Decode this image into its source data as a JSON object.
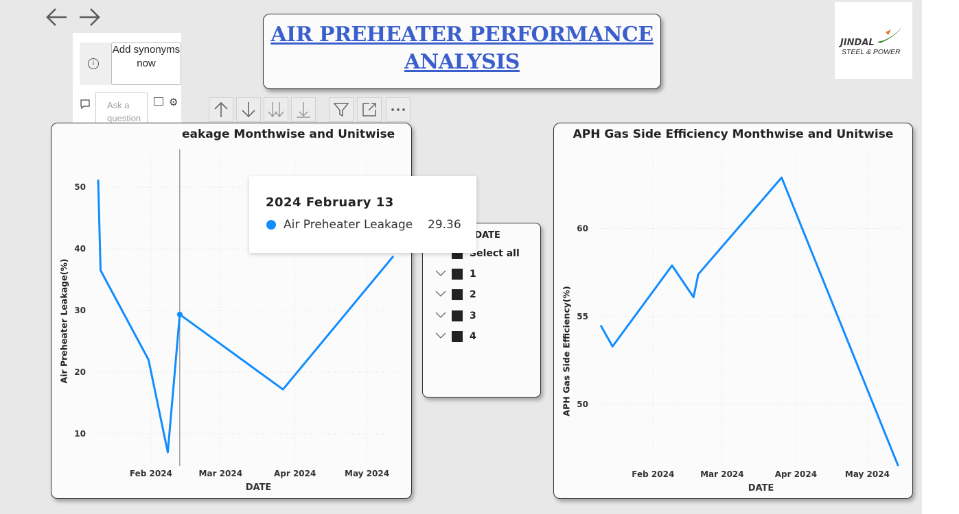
{
  "nav": {
    "back_icon": "arrow-left-icon",
    "forward_icon": "arrow-right-icon"
  },
  "header": {
    "title": "AIR PREHEATER PERFORMANCE ANALYSIS"
  },
  "logo": {
    "line1": "JINDAL",
    "line2": "STEEL & POWER"
  },
  "qa": {
    "add_label": "Add synonyms now",
    "ask_placeholder": "Ask a question about"
  },
  "toolbar": {
    "icons": [
      "arrow-up-icon",
      "arrow-down-icon",
      "double-arrow-down-icon",
      "expand-hierarchy-icon",
      "filter-icon",
      "focus-mode-icon",
      "more-options-icon"
    ]
  },
  "colors": {
    "series": "#118dff",
    "title": "#3a5fcd"
  },
  "slicer": {
    "header": "D DATE",
    "select_all": "Select all",
    "items": [
      "1",
      "2",
      "3",
      "4"
    ]
  },
  "tooltip": {
    "date": "2024 February 13",
    "series": "Air Preheater Leakage",
    "value": "29.36"
  },
  "chart_data": [
    {
      "type": "line",
      "title": "Air Preheater Leakage Monthwise and Unitwise",
      "visible_title": "eakage Monthwise and Unitwise",
      "xlabel": "DATE",
      "ylabel": "Air Preheater Leakage(%)",
      "x_ticks": [
        "Feb 2024",
        "Mar 2024",
        "Apr 2024",
        "May 2024"
      ],
      "y_ticks": [
        10,
        20,
        30,
        40,
        50
      ],
      "xlim": [
        "2024-01-10",
        "2024-05-14"
      ],
      "ylim": [
        5,
        55
      ],
      "grid": true,
      "series": [
        {
          "x": [
            "2024-01-10",
            "2024-01-11",
            "2024-01-31",
            "2024-02-08",
            "2024-02-13",
            "2024-03-27",
            "2024-05-12"
          ],
          "values": [
            51.2,
            36.5,
            22.0,
            7.0,
            29.36,
            17.2,
            38.8
          ]
        }
      ]
    },
    {
      "type": "line",
      "title": "APH Gas Side Efficiency Monthwise and Unitwise",
      "xlabel": "DATE",
      "ylabel": "APH Gas Side Efficiency(%)",
      "x_ticks": [
        "Feb 2024",
        "Mar 2024",
        "Apr 2024",
        "May 2024"
      ],
      "y_ticks": [
        50,
        55,
        60
      ],
      "xlim": [
        "2024-01-10",
        "2024-05-15"
      ],
      "ylim": [
        46.5,
        64.5
      ],
      "grid": true,
      "series": [
        {
          "x": [
            "2024-01-10",
            "2024-01-15",
            "2024-02-09",
            "2024-02-18",
            "2024-02-20",
            "2024-03-26",
            "2024-05-14"
          ],
          "values": [
            54.5,
            53.3,
            57.9,
            56.1,
            57.4,
            62.9,
            46.5
          ]
        }
      ]
    }
  ]
}
